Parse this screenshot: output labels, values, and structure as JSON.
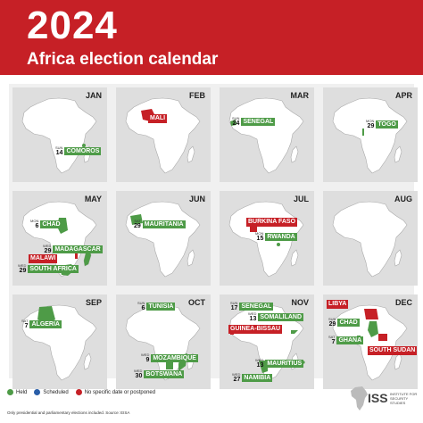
{
  "header": {
    "year": "2024",
    "subtitle": "Africa election calendar"
  },
  "colors": {
    "held": "#4e9b47",
    "scheduled": "#2a5ea8",
    "no_date": "#c62026",
    "land": "#ffffff",
    "panel": "#dedede"
  },
  "months": [
    {
      "month": "JAN",
      "events": [
        {
          "dow": "SUN",
          "day": "14",
          "country": "COMOROS",
          "status": "held"
        }
      ]
    },
    {
      "month": "FEB",
      "events": [
        {
          "dow": "",
          "day": "",
          "country": "MALI",
          "status": "no_date"
        }
      ]
    },
    {
      "month": "MAR",
      "events": [
        {
          "dow": "SUN",
          "day": "24",
          "country": "SENEGAL",
          "status": "held"
        }
      ]
    },
    {
      "month": "APR",
      "events": [
        {
          "dow": "MON",
          "day": "29",
          "country": "TOGO",
          "status": "held"
        }
      ]
    },
    {
      "month": "MAY",
      "events": [
        {
          "dow": "MON",
          "day": "6",
          "country": "CHAD",
          "status": "held"
        },
        {
          "dow": "WED",
          "day": "29",
          "country": "MADAGASCAR",
          "status": "held"
        },
        {
          "dow": "",
          "day": "",
          "country": "MALAWI",
          "status": "no_date"
        },
        {
          "dow": "WED",
          "day": "29",
          "country": "SOUTH AFRICA",
          "status": "held"
        }
      ]
    },
    {
      "month": "JUN",
      "events": [
        {
          "dow": "SAT",
          "day": "29",
          "country": "MAURITANIA",
          "status": "held"
        }
      ]
    },
    {
      "month": "JUL",
      "events": [
        {
          "dow": "",
          "day": "",
          "country": "BURKINA FASO",
          "status": "no_date"
        },
        {
          "dow": "MON",
          "day": "15",
          "country": "RWANDA",
          "status": "held"
        }
      ]
    },
    {
      "month": "AUG",
      "events": []
    },
    {
      "month": "SEP",
      "events": [
        {
          "dow": "SAT",
          "day": "7",
          "country": "ALGERIA",
          "status": "held"
        }
      ]
    },
    {
      "month": "OCT",
      "events": [
        {
          "dow": "SUN",
          "day": "6",
          "country": "TUNISIA",
          "status": "held"
        },
        {
          "dow": "WED",
          "day": "9",
          "country": "MOZAMBIQUE",
          "status": "held"
        },
        {
          "dow": "WED",
          "day": "30",
          "country": "BOTSWANA",
          "status": "held"
        }
      ]
    },
    {
      "month": "NOV",
      "events": [
        {
          "dow": "SUN",
          "day": "17",
          "country": "SENEGAL",
          "status": "held"
        },
        {
          "dow": "WED",
          "day": "13",
          "country": "SOMALILAND",
          "status": "held"
        },
        {
          "dow": "",
          "day": "",
          "country": "GUINEA-BISSAU",
          "status": "no_date"
        },
        {
          "dow": "WED",
          "day": "27",
          "country": "NAMIBIA",
          "status": "held"
        },
        {
          "dow": "WED",
          "day": "13",
          "country": "MAURITIUS",
          "status": "held"
        }
      ]
    },
    {
      "month": "DEC",
      "events": [
        {
          "dow": "",
          "day": "",
          "country": "LIBYA",
          "status": "no_date"
        },
        {
          "dow": "SUN",
          "day": "29",
          "country": "CHAD",
          "status": "held"
        },
        {
          "dow": "SAT",
          "day": "7",
          "country": "GHANA",
          "status": "held"
        },
        {
          "dow": "",
          "day": "",
          "country": "SOUTH SUDAN",
          "status": "no_date"
        }
      ]
    }
  ],
  "legend": [
    {
      "label": "Held",
      "status": "held"
    },
    {
      "label": "Scheduled",
      "status": "scheduled"
    },
    {
      "label": "No specific date or postponed",
      "status": "no_date"
    }
  ],
  "footnote": "Only presidential and parliamentary elections included. Source: EISA",
  "logo": {
    "mark": "ISS",
    "line1": "INSTITUTE FOR",
    "line2": "SECURITY STUDIES"
  }
}
